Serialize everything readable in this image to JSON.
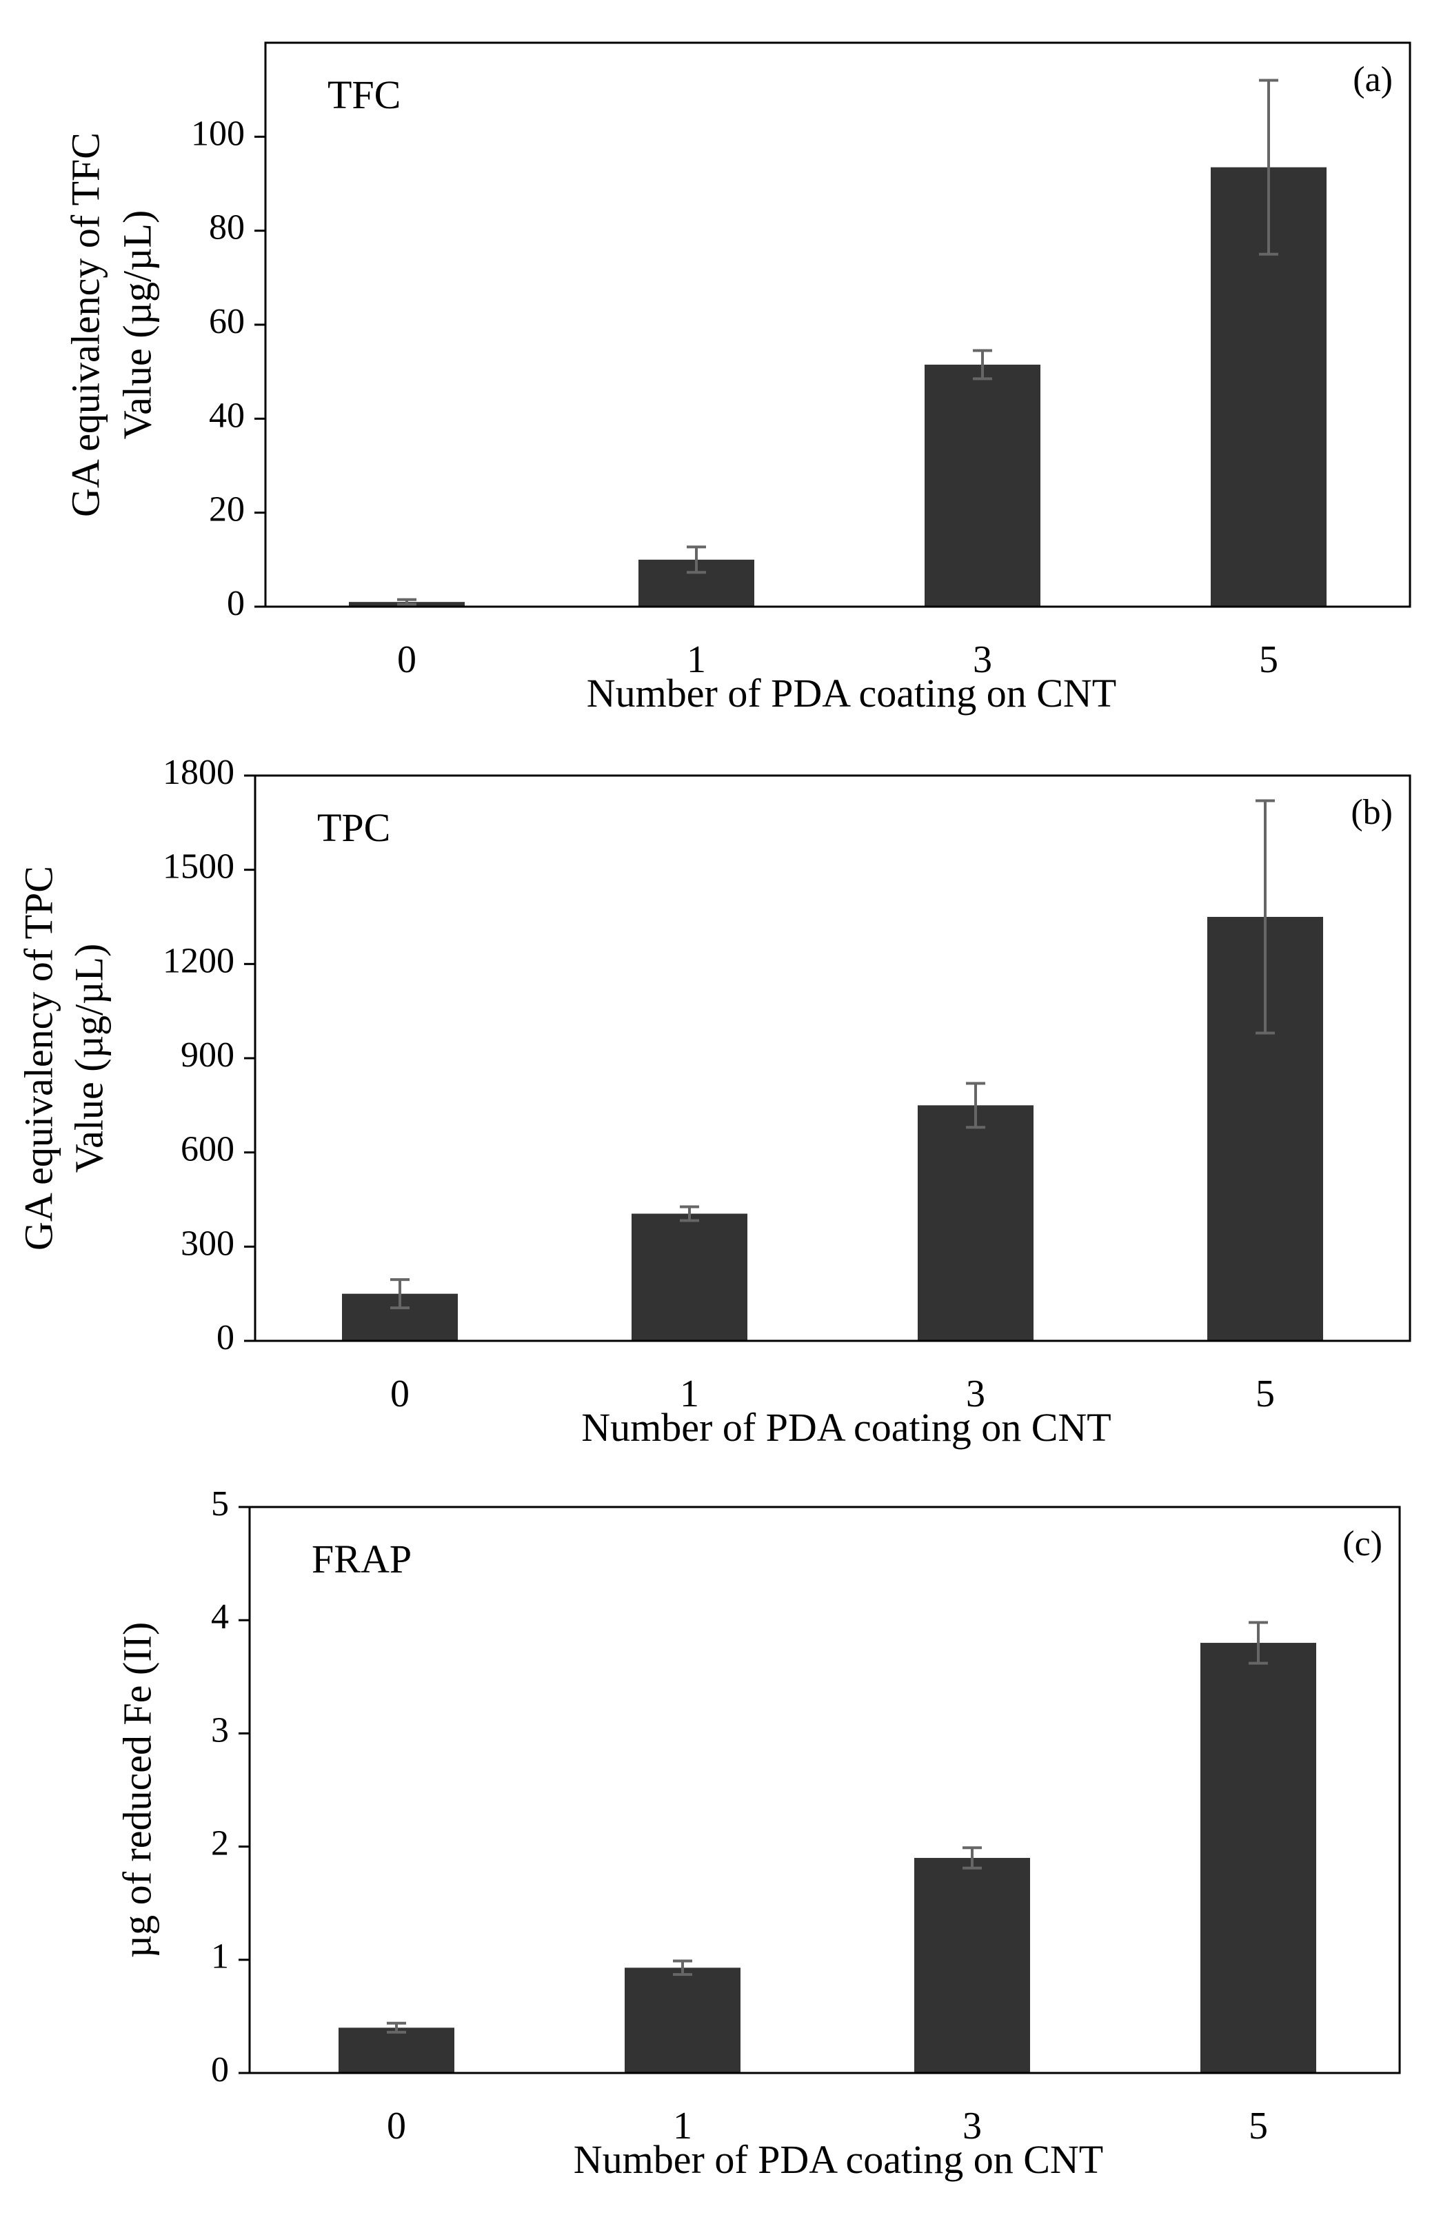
{
  "chart_data": [
    {
      "type": "bar",
      "panel_label": "(a)",
      "inset_label": "TFC",
      "categories": [
        "0",
        "1",
        "3",
        "5"
      ],
      "values": [
        1,
        10,
        51.5,
        93.5
      ],
      "errors": [
        0.5,
        2.7,
        3,
        18.5
      ],
      "xlabel": "Number of PDA coating on CNT",
      "ylabel_lines": [
        "GA equivalency of TFC",
        "Value (µg/µL)"
      ],
      "ylim": [
        0,
        120
      ],
      "yticks": [
        0,
        20,
        40,
        60,
        80,
        100
      ],
      "ytick_labels": [
        "0",
        "20",
        "40",
        "60",
        "80",
        "100"
      ],
      "grid": false,
      "bar_color": "#333333",
      "error_color": "#666666"
    },
    {
      "type": "bar",
      "panel_label": "(b)",
      "inset_label": "TPC",
      "categories": [
        "0",
        "1",
        "3",
        "5"
      ],
      "values": [
        150,
        405,
        750,
        1350
      ],
      "errors": [
        45,
        22,
        70,
        370
      ],
      "xlabel": "Number of PDA coating on CNT",
      "ylabel_lines": [
        "GA equivalency of TPC",
        "Value (µg/µL)"
      ],
      "ylim": [
        0,
        1800
      ],
      "yticks": [
        0,
        300,
        600,
        900,
        1200,
        1500,
        1800
      ],
      "ytick_labels": [
        "0",
        "300",
        "600",
        "900",
        "1200",
        "1500",
        "1800"
      ],
      "grid": false,
      "bar_color": "#333333",
      "error_color": "#666666"
    },
    {
      "type": "bar",
      "panel_label": "(c)",
      "inset_label": "FRAP",
      "categories": [
        "0",
        "1",
        "3",
        "5"
      ],
      "values": [
        0.4,
        0.93,
        1.9,
        3.8
      ],
      "errors": [
        0.04,
        0.06,
        0.09,
        0.18
      ],
      "xlabel": "Number of PDA coating on CNT",
      "ylabel_lines": [
        "µg of reduced Fe (II)"
      ],
      "ylim": [
        0,
        5
      ],
      "yticks": [
        0,
        1,
        2,
        3,
        4,
        5
      ],
      "ytick_labels": [
        "0",
        "1",
        "2",
        "3",
        "4",
        "5"
      ],
      "grid": false,
      "bar_color": "#333333",
      "error_color": "#666666"
    }
  ]
}
